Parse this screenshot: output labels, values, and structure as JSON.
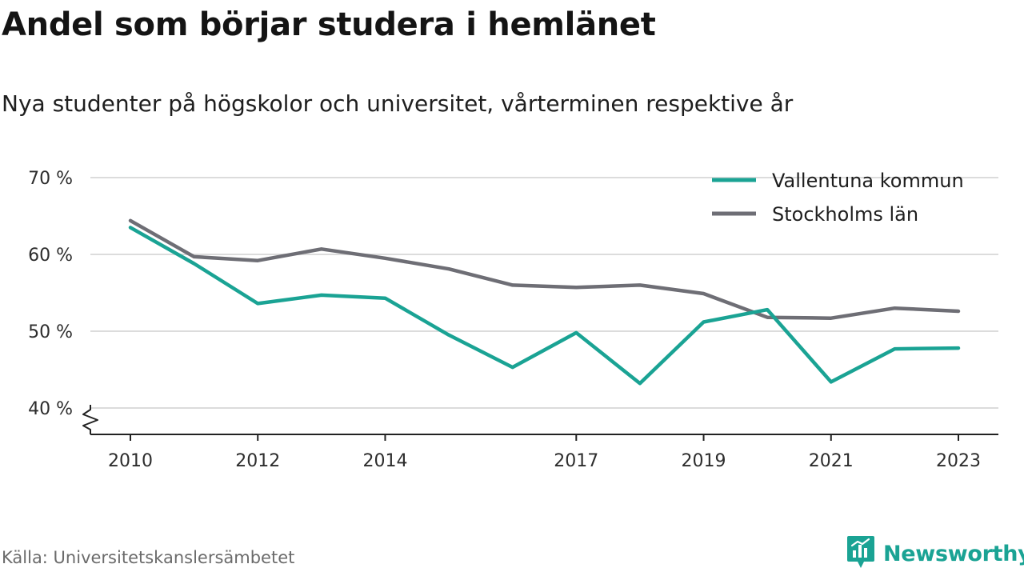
{
  "title": "Andel som börjar studera i hemlänet",
  "subtitle": "Nya studenter på högskolor och universitet, vårterminen respektive år",
  "source": "Källa: Universitetskanslersämbetet",
  "brand": {
    "name": "Newsworthy",
    "icon": "newsworthy-logo-icon",
    "color": "#1aa394"
  },
  "chart_data": {
    "type": "line",
    "title": "Andel som börjar studera i hemlänet",
    "subtitle": "Nya studenter på högskolor och universitet, vårterminen respektive år",
    "x": [
      2010,
      2011,
      2012,
      2013,
      2014,
      2015,
      2016,
      2017,
      2018,
      2019,
      2020,
      2021,
      2022,
      2023
    ],
    "x_ticks": [
      2010,
      2012,
      2014,
      2017,
      2019,
      2021,
      2023
    ],
    "x_tick_labels": [
      "2010",
      "2012",
      "2014",
      "2017",
      "2019",
      "2021",
      "2023"
    ],
    "y_ticks": [
      40,
      50,
      60,
      70
    ],
    "y_tick_labels": [
      "40 %",
      "50 %",
      "60 %",
      "70 %"
    ],
    "ylim": [
      36.5,
      70
    ],
    "y_axis_break": true,
    "grid": "horizontal",
    "legend_position": "top-right",
    "series": [
      {
        "name": "Vallentuna kommun",
        "color": "#1aa394",
        "values": [
          63.5,
          58.8,
          53.6,
          54.7,
          54.3,
          49.5,
          45.3,
          49.8,
          43.2,
          51.2,
          52.8,
          43.4,
          47.7,
          47.8
        ]
      },
      {
        "name": "Stockholms län",
        "color": "#6e6e75",
        "values": [
          64.4,
          59.7,
          59.2,
          60.7,
          59.5,
          58.1,
          56.0,
          55.7,
          56.0,
          54.9,
          51.8,
          51.7,
          53.0,
          52.6
        ]
      }
    ]
  }
}
